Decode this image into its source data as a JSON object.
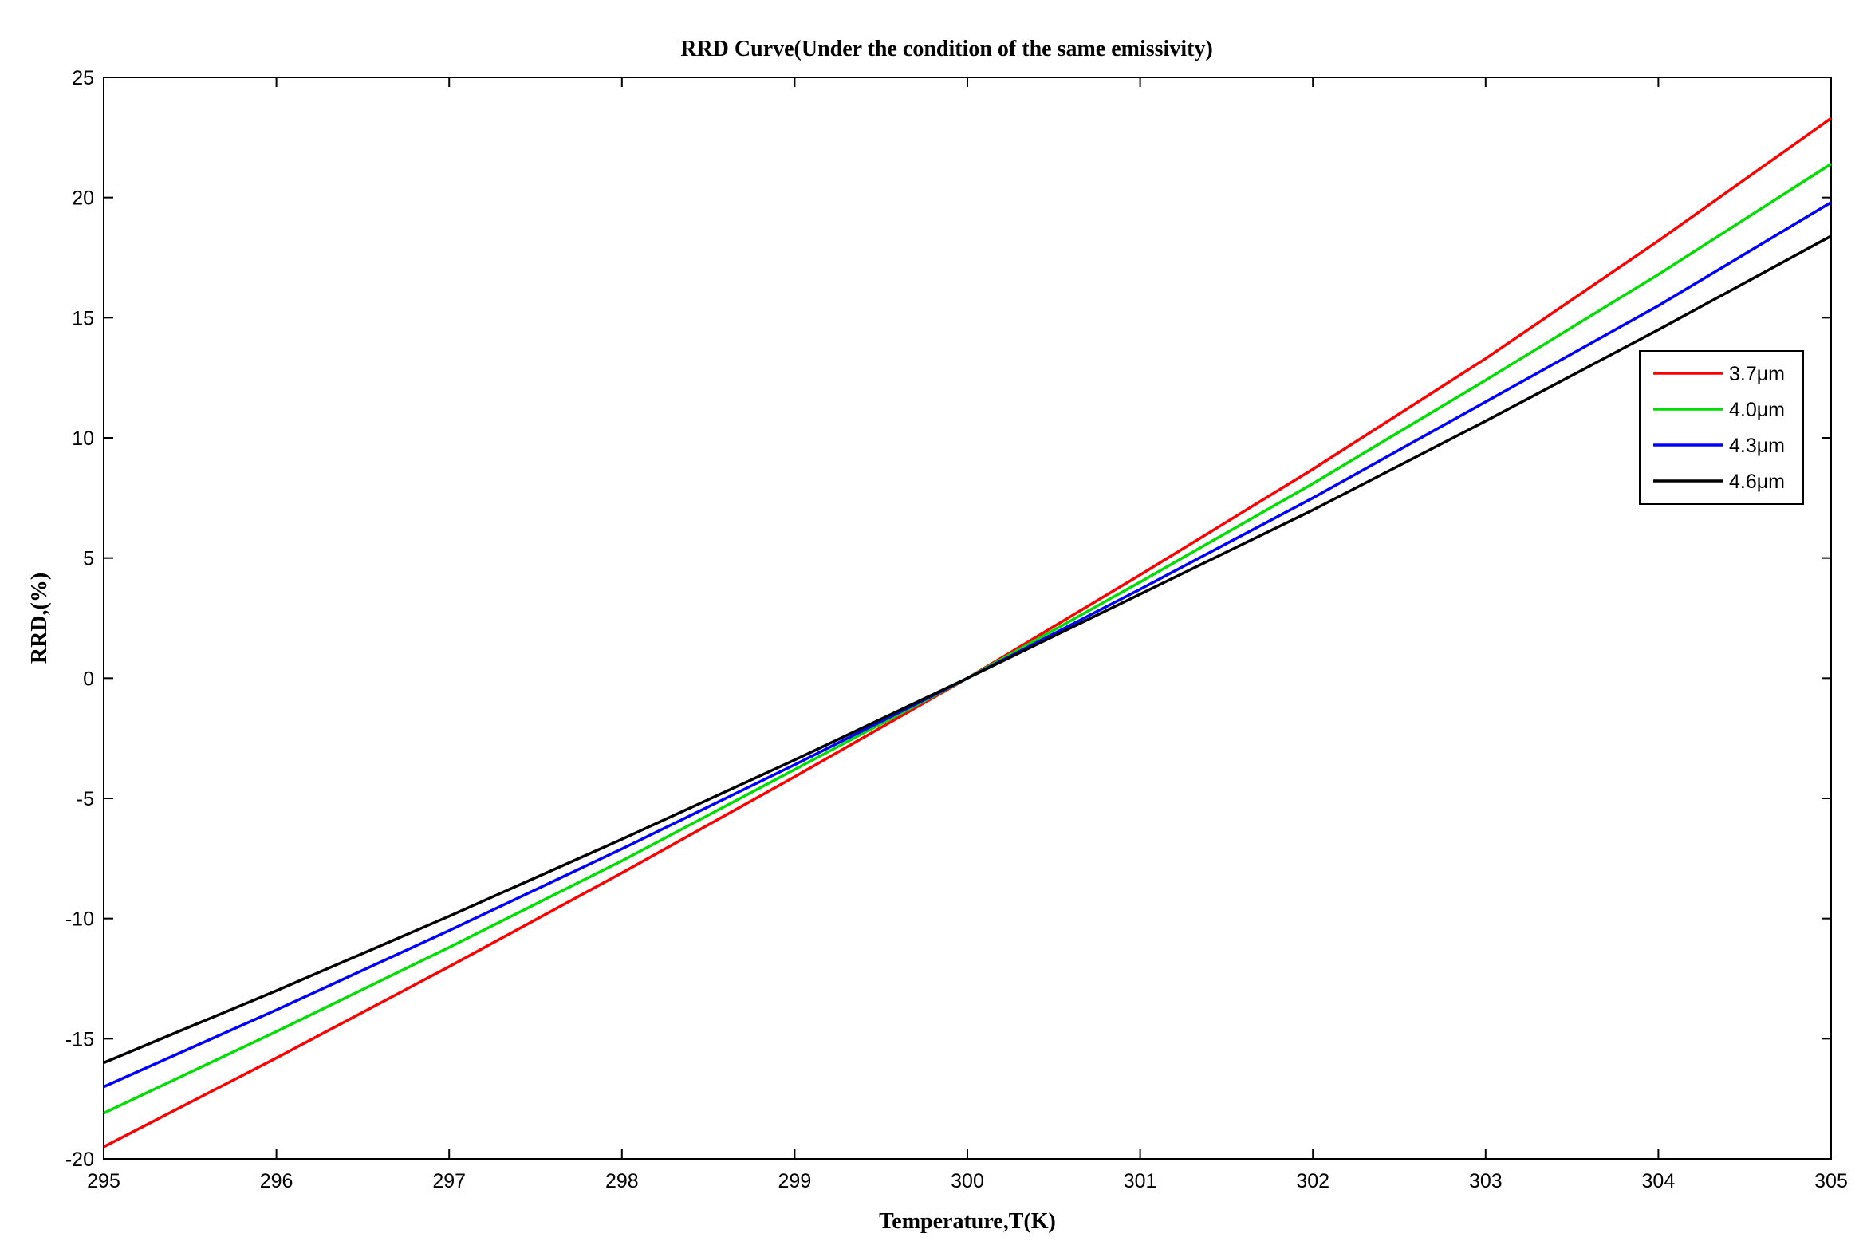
{
  "chart_data": {
    "type": "line",
    "title": "RRD Curve(Under the condition of the same emissivity)",
    "xlabel": "Temperature,T(K)",
    "ylabel": "RRD,(%)",
    "xlim": [
      295,
      305
    ],
    "ylim": [
      -20,
      25
    ],
    "xticks": [
      "295",
      "296",
      "297",
      "298",
      "299",
      "300",
      "301",
      "302",
      "303",
      "304",
      "305"
    ],
    "yticks": [
      "-20",
      "-15",
      "-10",
      "-5",
      "0",
      "5",
      "10",
      "15",
      "20",
      "25"
    ],
    "grid": false,
    "legend_position": "right",
    "series": [
      {
        "name": "3.7μm",
        "color": "#ff0000",
        "x": [
          295,
          296,
          297,
          298,
          299,
          300,
          301,
          302,
          303,
          304,
          305
        ],
        "values": [
          -19.5,
          -15.8,
          -12.0,
          -8.1,
          -4.1,
          0,
          4.3,
          8.7,
          13.3,
          18.2,
          23.3
        ]
      },
      {
        "name": "4.0μm",
        "color": "#00dd00",
        "x": [
          295,
          296,
          297,
          298,
          299,
          300,
          301,
          302,
          303,
          304,
          305
        ],
        "values": [
          -18.1,
          -14.7,
          -11.2,
          -7.6,
          -3.8,
          0,
          4.0,
          8.1,
          12.4,
          16.8,
          21.4
        ]
      },
      {
        "name": "4.3μm",
        "color": "#0000ff",
        "x": [
          295,
          296,
          297,
          298,
          299,
          300,
          301,
          302,
          303,
          304,
          305
        ],
        "values": [
          -17.0,
          -13.8,
          -10.5,
          -7.1,
          -3.6,
          0,
          3.7,
          7.5,
          11.5,
          15.5,
          19.8
        ]
      },
      {
        "name": "4.6μm",
        "color": "#000000",
        "x": [
          295,
          296,
          297,
          298,
          299,
          300,
          301,
          302,
          303,
          304,
          305
        ],
        "values": [
          -16.0,
          -13.0,
          -9.9,
          -6.7,
          -3.4,
          0,
          3.5,
          7.0,
          10.7,
          14.5,
          18.4
        ]
      }
    ]
  }
}
